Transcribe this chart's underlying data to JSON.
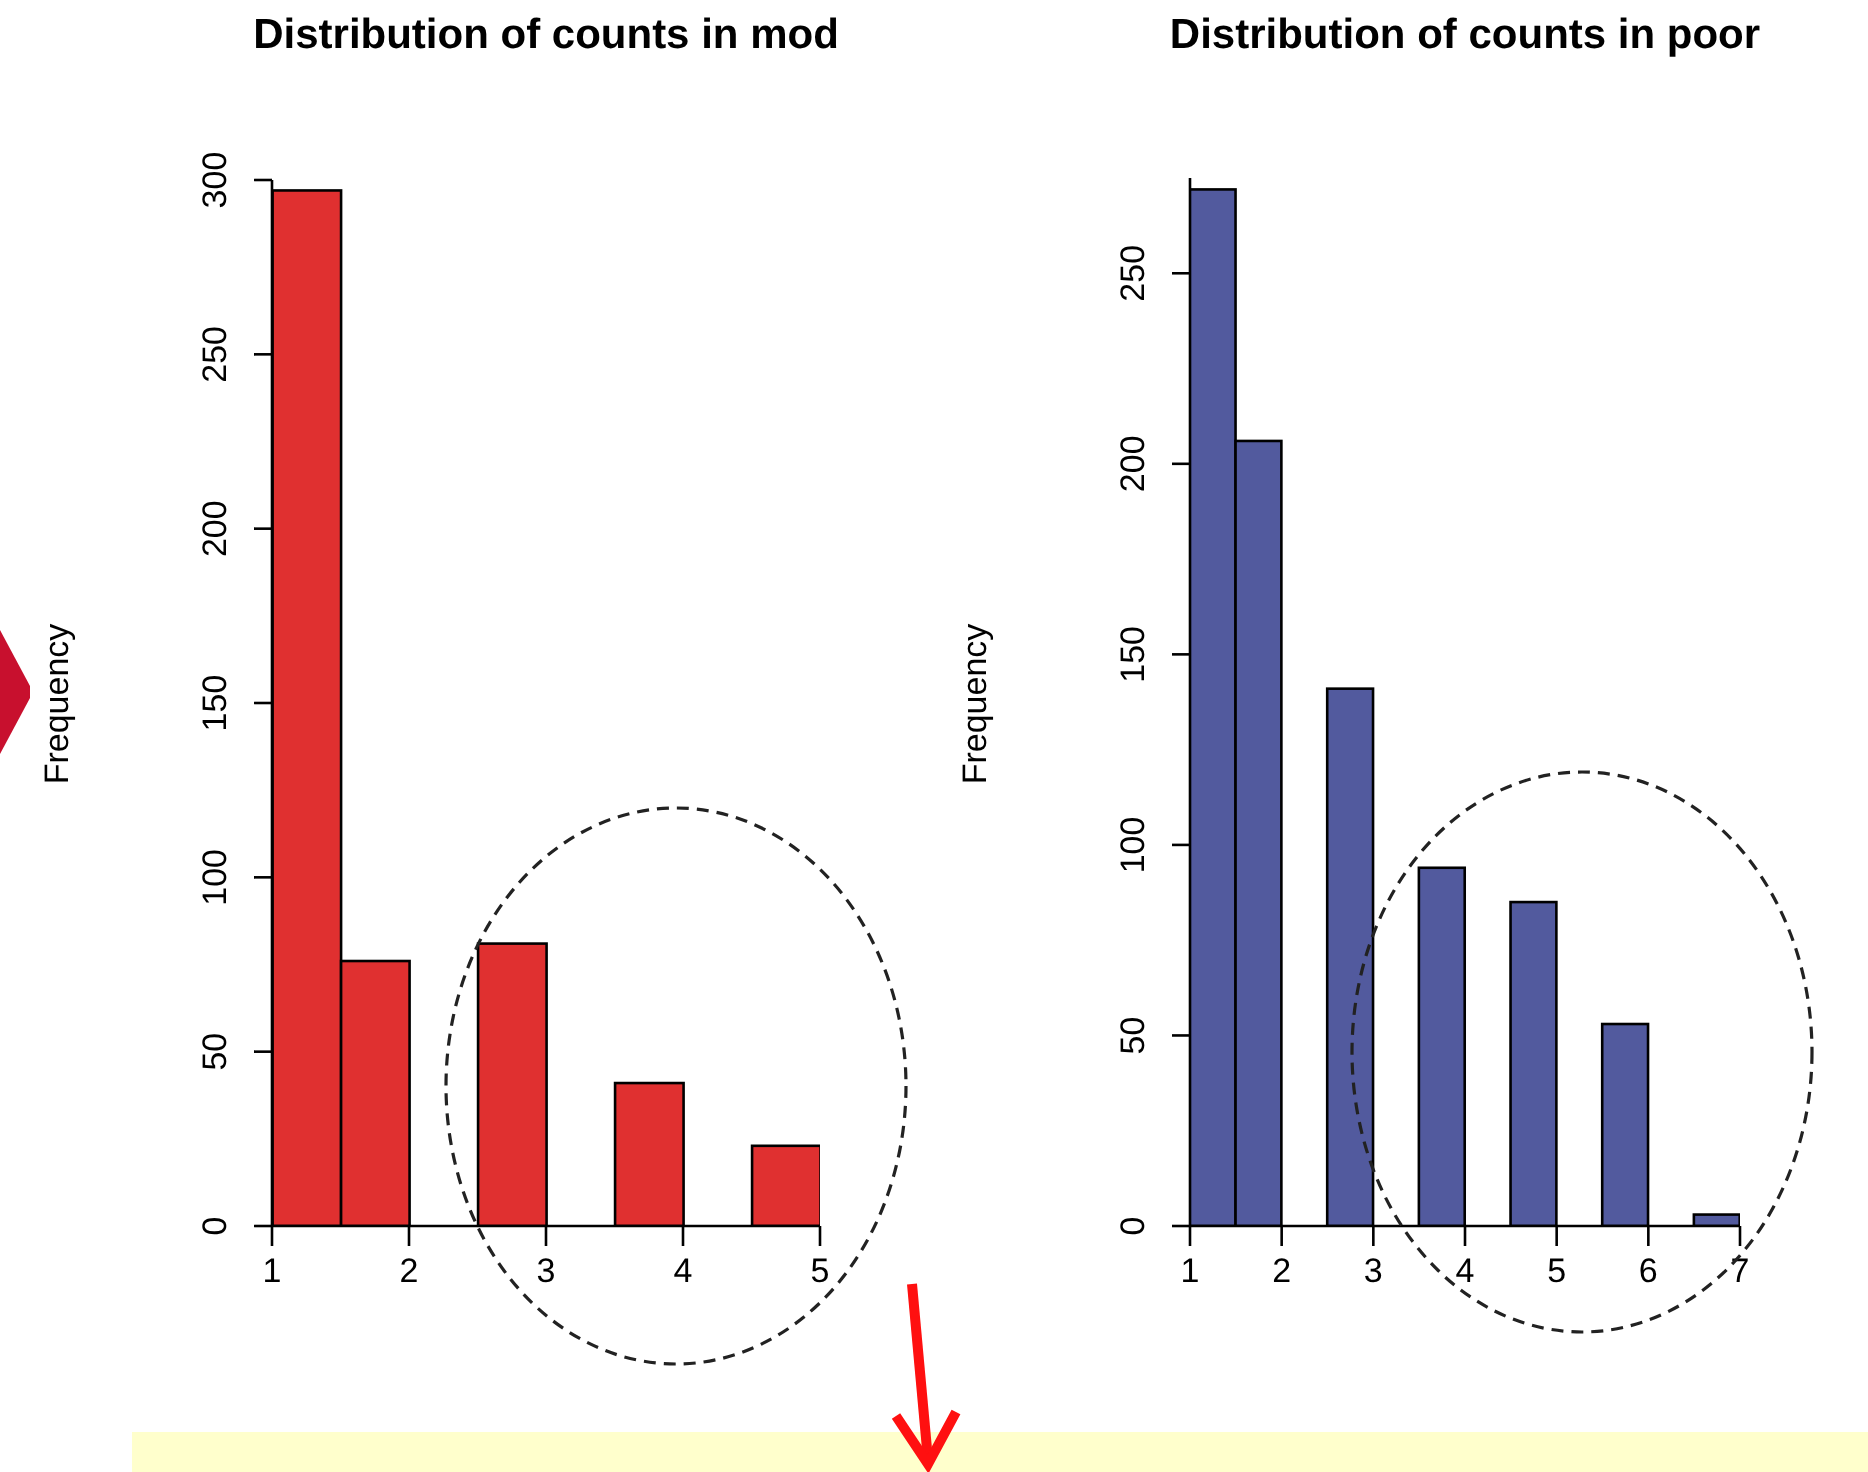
{
  "chart_data": [
    {
      "type": "histogram",
      "title": "Distribution of counts in mod",
      "ylabel": "Frequency",
      "color": "#e03030",
      "bins": [
        1,
        1.5,
        2,
        2.5,
        3,
        3.5,
        4,
        4.5,
        5
      ],
      "values": [
        297,
        76,
        0,
        81,
        0,
        41,
        0,
        23
      ],
      "xlim": [
        1,
        5
      ],
      "xticks": [
        1,
        2,
        3,
        4,
        5
      ],
      "ylim": [
        0,
        300
      ],
      "yticks": [
        0,
        50,
        100,
        150,
        200,
        250,
        300
      ]
    },
    {
      "type": "histogram",
      "title": "Distribution of counts in poor",
      "ylabel": "Frequency",
      "color": "#525a9e",
      "bins": [
        1,
        1.5,
        2,
        2.5,
        3,
        3.5,
        4,
        4.5,
        5,
        5.5,
        6,
        6.5,
        7
      ],
      "values": [
        272,
        206,
        0,
        141,
        0,
        94,
        0,
        85,
        0,
        53,
        0,
        3
      ],
      "xlim": [
        1,
        7
      ],
      "xticks": [
        1,
        2,
        3,
        4,
        5,
        6,
        7
      ],
      "ylim": [
        0,
        275
      ],
      "yticks": [
        0,
        50,
        100,
        150,
        200,
        250
      ]
    }
  ]
}
